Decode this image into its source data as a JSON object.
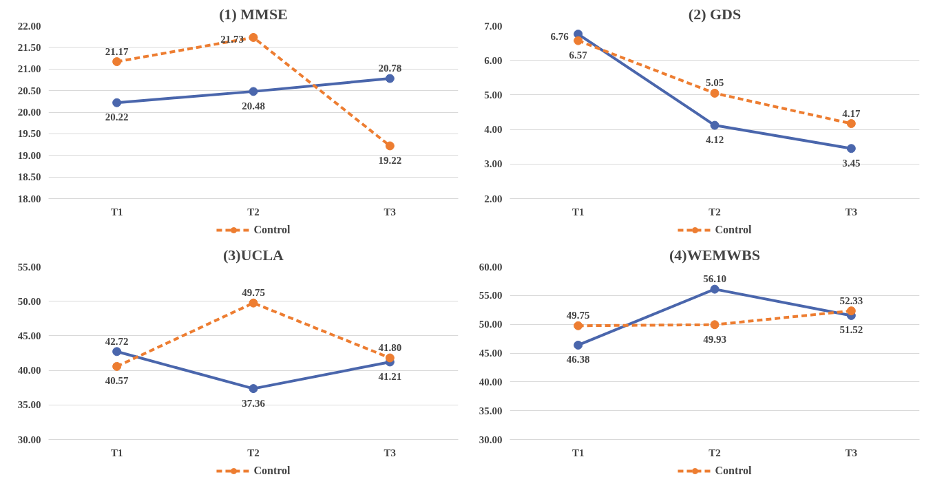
{
  "chart_data": [
    {
      "type": "line",
      "title": "(1) MMSE",
      "categories": [
        "T1",
        "T2",
        "T3"
      ],
      "ylim": [
        18,
        22
      ],
      "yticks": [
        {
          "value": 18,
          "label": "18.00"
        },
        {
          "value": 18.5,
          "label": "18.50"
        },
        {
          "value": 19,
          "label": "19.00"
        },
        {
          "value": 19.5,
          "label": "19.50"
        },
        {
          "value": 20,
          "label": "20.00"
        },
        {
          "value": 20.5,
          "label": "20.50"
        },
        {
          "value": 21,
          "label": "21.00"
        },
        {
          "value": 21.5,
          "label": "21.50"
        },
        {
          "value": 22,
          "label": "22.00"
        }
      ],
      "grid": "y",
      "legend": "bottom",
      "marker": "circle",
      "series": [
        {
          "color": "#4a66ac",
          "line_style": "solid",
          "values": [
            20.22,
            20.48,
            20.78
          ],
          "value_labels": [
            "20.22",
            "20.48",
            "20.78"
          ]
        },
        {
          "name": "Control",
          "color": "#ed7d31",
          "line_style": "dashed",
          "values": [
            21.17,
            21.73,
            19.22
          ],
          "value_labels": [
            "21.17",
            "21.73",
            "19.22"
          ]
        }
      ]
    },
    {
      "type": "line",
      "title": "(2) GDS",
      "categories": [
        "T1",
        "T2",
        "T3"
      ],
      "ylim": [
        2,
        7
      ],
      "yticks": [
        {
          "value": 2,
          "label": "2.00"
        },
        {
          "value": 3,
          "label": "3.00"
        },
        {
          "value": 4,
          "label": "4.00"
        },
        {
          "value": 5,
          "label": "5.00"
        },
        {
          "value": 6,
          "label": "6.00"
        },
        {
          "value": 7,
          "label": "7.00"
        }
      ],
      "grid": "y",
      "legend": "bottom",
      "marker": "circle",
      "series": [
        {
          "color": "#4a66ac",
          "line_style": "solid",
          "values": [
            6.76,
            4.12,
            3.45
          ],
          "value_labels": [
            "6.76",
            "4.12",
            "3.45"
          ]
        },
        {
          "name": "Control",
          "color": "#ed7d31",
          "line_style": "dashed",
          "values": [
            6.57,
            5.05,
            4.17
          ],
          "value_labels": [
            "6.57",
            "5.05",
            "4.17"
          ]
        }
      ]
    },
    {
      "type": "line",
      "title": "(3)UCLA",
      "categories": [
        "T1",
        "T2",
        "T3"
      ],
      "ylim": [
        30,
        55
      ],
      "yticks": [
        {
          "value": 30,
          "label": "30.00"
        },
        {
          "value": 35,
          "label": "35.00"
        },
        {
          "value": 40,
          "label": "40.00"
        },
        {
          "value": 45,
          "label": "45.00"
        },
        {
          "value": 50,
          "label": "50.00"
        },
        {
          "value": 55,
          "label": "55.00"
        }
      ],
      "grid": "y",
      "legend": "bottom",
      "marker": "circle",
      "series": [
        {
          "color": "#4a66ac",
          "line_style": "solid",
          "values": [
            42.72,
            37.36,
            41.21
          ],
          "value_labels": [
            "42.72",
            "37.36",
            "41.21"
          ]
        },
        {
          "name": "Control",
          "color": "#ed7d31",
          "line_style": "dashed",
          "values": [
            40.57,
            49.75,
            41.8
          ],
          "value_labels": [
            "40.57",
            "49.75",
            "41.80"
          ]
        }
      ]
    },
    {
      "type": "line",
      "title": "(4)WEMWBS",
      "categories": [
        "T1",
        "T2",
        "T3"
      ],
      "ylim": [
        30,
        60
      ],
      "yticks": [
        {
          "value": 30,
          "label": "30.00"
        },
        {
          "value": 35,
          "label": "35.00"
        },
        {
          "value": 40,
          "label": "40.00"
        },
        {
          "value": 45,
          "label": "45.00"
        },
        {
          "value": 50,
          "label": "50.00"
        },
        {
          "value": 55,
          "label": "55.00"
        },
        {
          "value": 60,
          "label": "60.00"
        }
      ],
      "grid": "y",
      "legend": "bottom",
      "marker": "circle",
      "series": [
        {
          "color": "#4a66ac",
          "line_style": "solid",
          "values": [
            46.38,
            56.1,
            51.52
          ],
          "value_labels": [
            "46.38",
            "56.10",
            "51.52"
          ]
        },
        {
          "name": "Control",
          "color": "#ed7d31",
          "line_style": "dashed",
          "values": [
            49.75,
            49.93,
            52.33
          ],
          "value_labels": [
            "49.75",
            "49.93",
            "52.33"
          ]
        }
      ]
    }
  ]
}
